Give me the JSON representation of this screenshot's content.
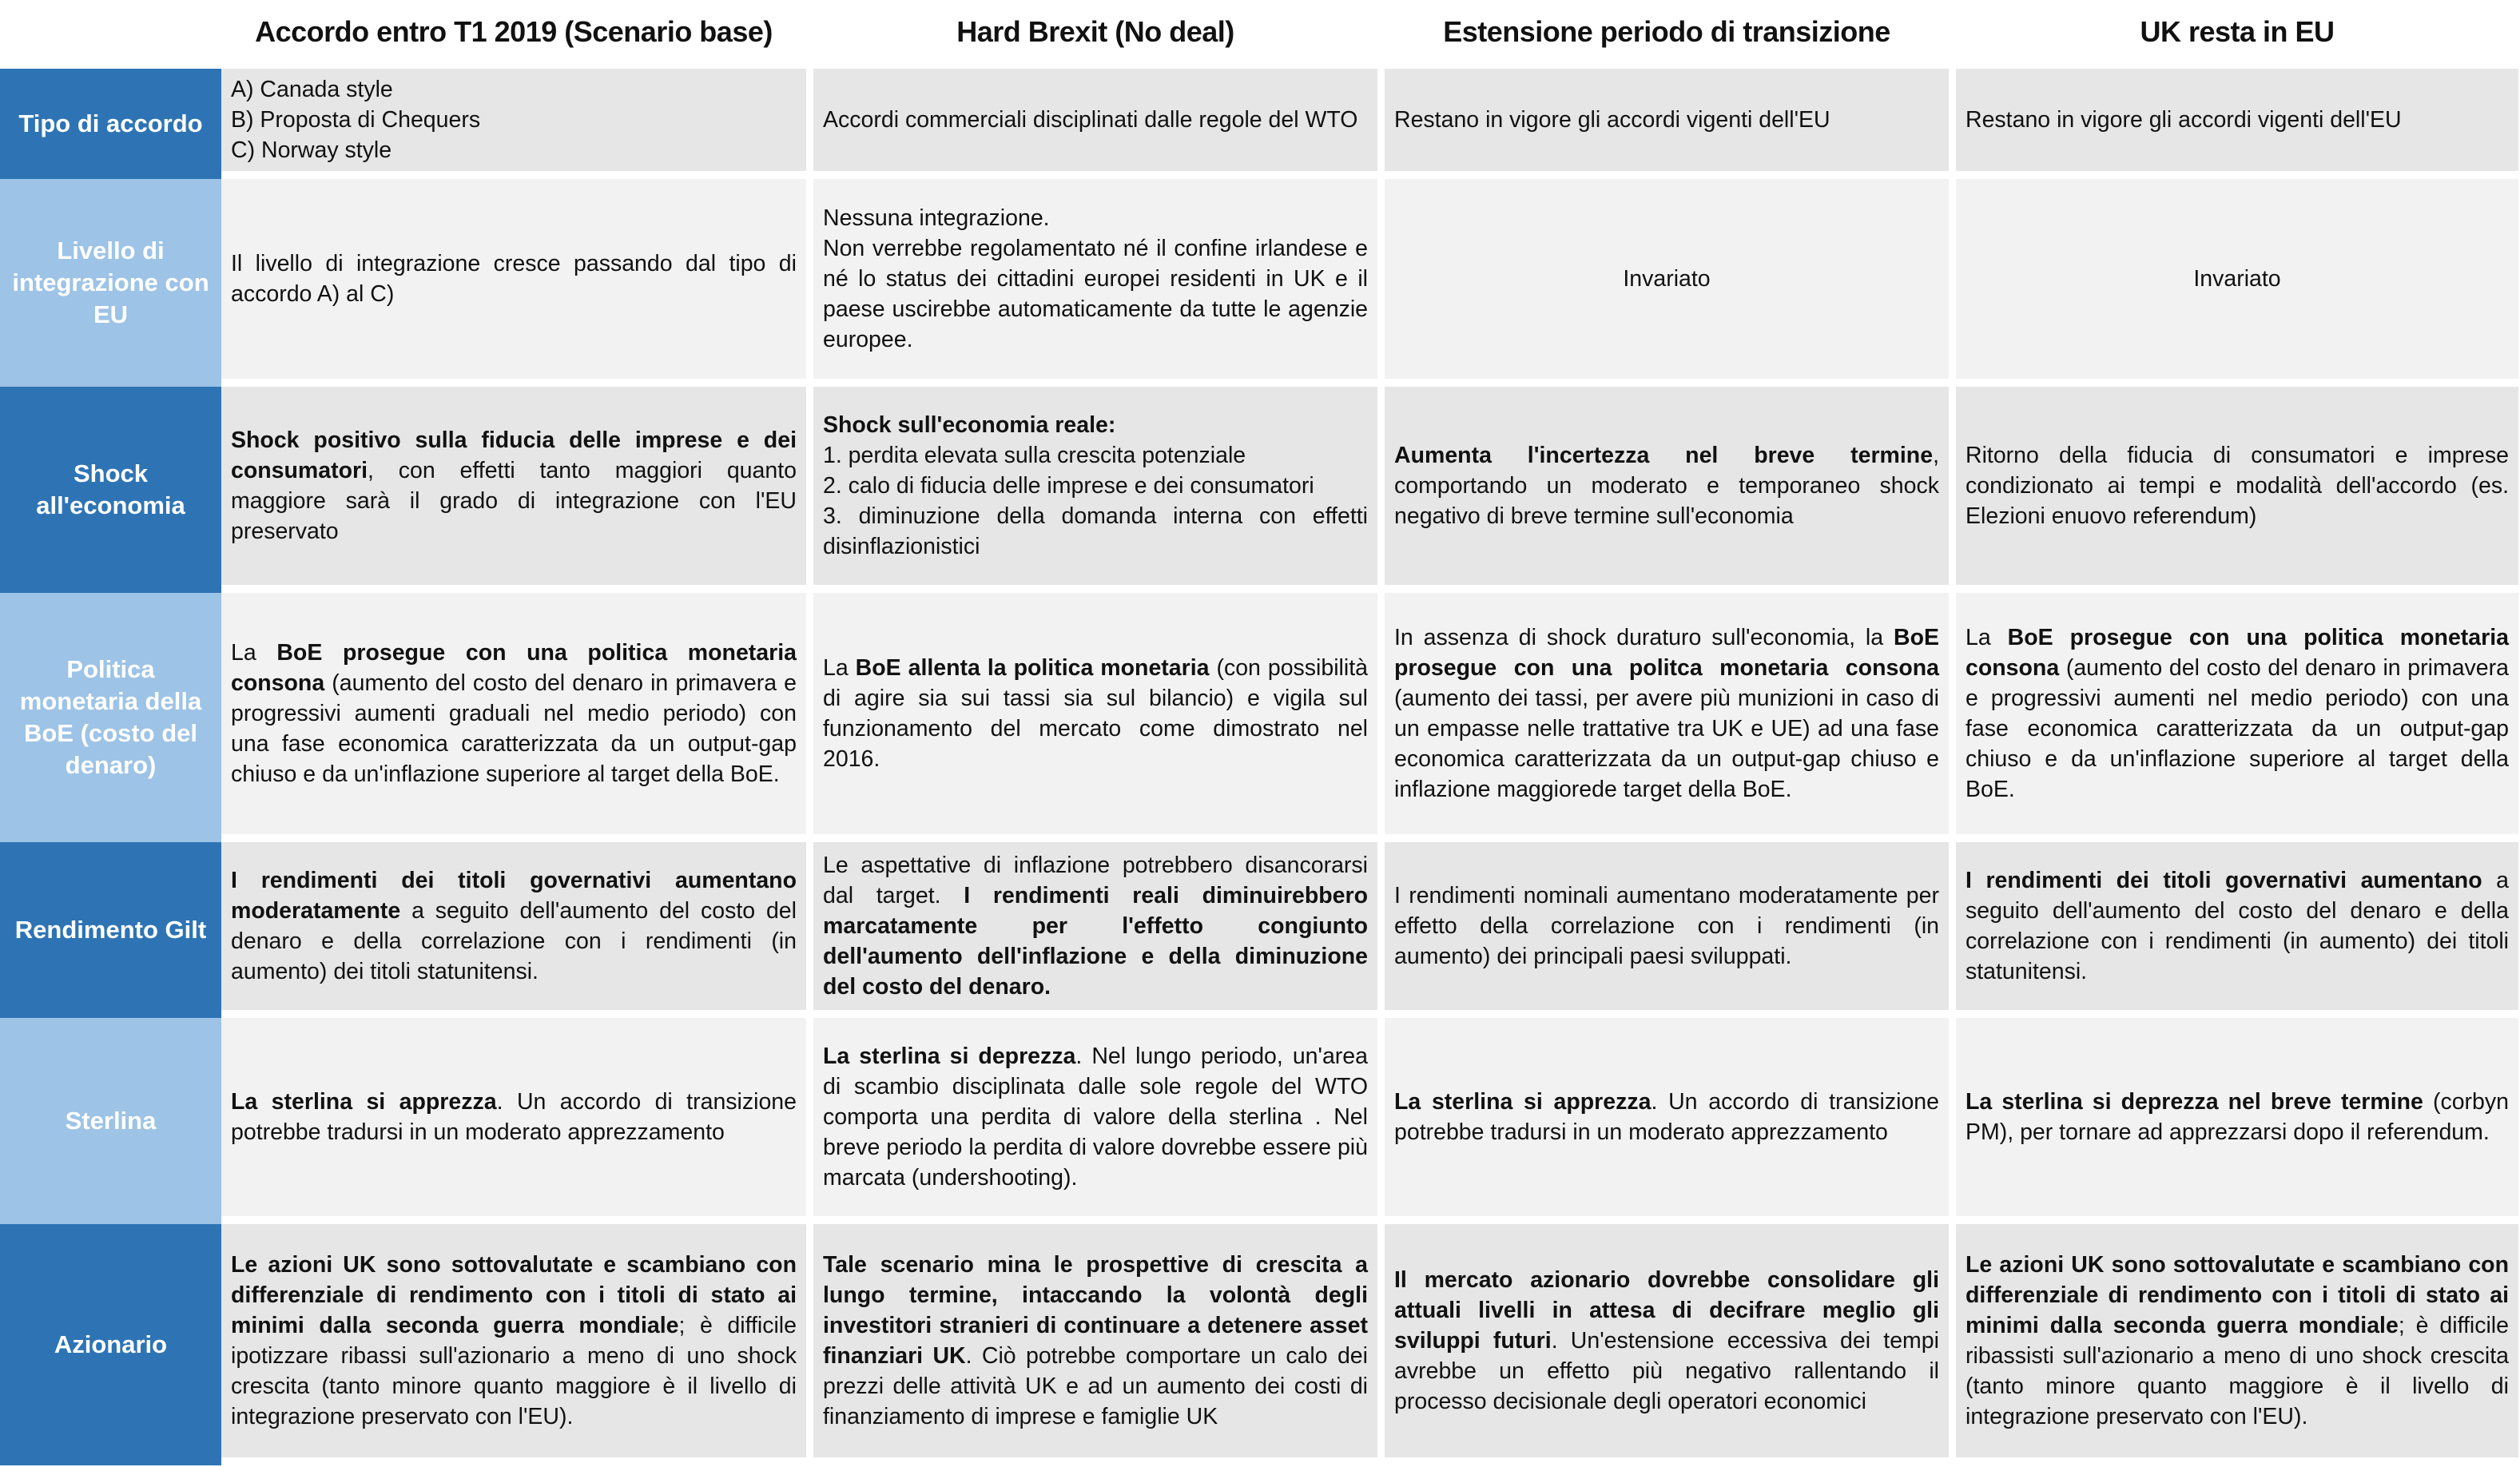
{
  "colors": {
    "label_dark": "#2E74B5",
    "label_light": "#9DC3E6",
    "cell_dark": "#E7E6E6",
    "cell_light": "#F2F2F2"
  },
  "headers": [
    "Accordo entro T1 2019 (Scenario base)",
    "Hard Brexit (No deal)",
    "Estensione periodo di transizione",
    "UK resta in EU"
  ],
  "rows": [
    {
      "label": "Tipo di accordo",
      "cells": [
        [
          {
            "t": "A) Canada style\nB) Proposta di Chequers\nC) Norway style"
          }
        ],
        [
          {
            "t": "Accordi commerciali disciplinati dalle regole del WTO"
          }
        ],
        [
          {
            "t": "Restano in vigore gli accordi vigenti dell'EU"
          }
        ],
        [
          {
            "t": "Restano in vigore gli accordi vigenti dell'EU"
          }
        ]
      ]
    },
    {
      "label": "Livello di integrazione con EU",
      "cells": [
        [
          {
            "t": "Il livello di integrazione cresce passando dal tipo di accordo A) al C)"
          }
        ],
        [
          {
            "t": "Nessuna integrazione.\nNon verrebbe regolamentato né il confine irlandese e né lo status dei cittadini europei residenti in UK e il paese uscirebbe automaticamente da tutte le agenzie europee."
          }
        ],
        [
          {
            "t": "Invariato"
          }
        ],
        [
          {
            "t": "Invariato"
          }
        ]
      ]
    },
    {
      "label": "Shock all'economia",
      "cells": [
        [
          {
            "b": true,
            "t": "Shock positivo sulla fiducia delle imprese e dei consumatori"
          },
          {
            "t": ", con effetti tanto maggiori quanto maggiore sarà il grado di integrazione con l'EU preservato"
          }
        ],
        [
          {
            "b": true,
            "t": "Shock sull'economia reale:"
          },
          {
            "t": "\n1. perdita elevata sulla crescita potenziale\n2. calo di fiducia delle imprese e dei consumatori\n3. diminuzione della domanda interna con effetti disinflazionistici"
          }
        ],
        [
          {
            "b": true,
            "t": "Aumenta l'incertezza nel breve termine"
          },
          {
            "t": ", comportando un moderato e temporaneo shock negativo di breve termine sull'economia"
          }
        ],
        [
          {
            "t": "Ritorno della fiducia di consumatori e imprese condizionato ai tempi e modalità dell'accordo (es. Elezioni enuovo referendum)"
          }
        ]
      ]
    },
    {
      "label": "Politica monetaria della BoE (costo del denaro)",
      "cells": [
        [
          {
            "t": "La "
          },
          {
            "b": true,
            "t": "BoE prosegue con una politica monetaria consona"
          },
          {
            "t": " (aumento del costo del denaro in primavera e progressivi aumenti graduali nel medio periodo) con una fase economica caratterizzata da un output-gap chiuso e da un'inflazione superiore al target della BoE."
          }
        ],
        [
          {
            "t": "La "
          },
          {
            "b": true,
            "t": "BoE allenta la politica monetaria"
          },
          {
            "t": " (con possibilità di agire sia sui tassi sia sul bilancio) e vigila sul funzionamento del mercato come dimostrato nel 2016."
          }
        ],
        [
          {
            "t": "In assenza di shock duraturo sull'economia, la "
          },
          {
            "b": true,
            "t": "BoE prosegue con una politca monetaria consona"
          },
          {
            "t": " (aumento dei tassi, per avere più munizioni in caso di un empasse nelle trattative tra UK e UE) ad una fase economica caratterizzata da un output-gap chiuso e inflazione maggiorede target della BoE."
          }
        ],
        [
          {
            "t": "La "
          },
          {
            "b": true,
            "t": "BoE prosegue con una politica monetaria consona"
          },
          {
            "t": " (aumento del costo del denaro in primavera e progressivi aumenti nel medio periodo) con una fase economica caratterizzata da un output-gap chiuso e da un'inflazione superiore al target della BoE."
          }
        ]
      ]
    },
    {
      "label": "Rendimento Gilt",
      "cells": [
        [
          {
            "b": true,
            "t": "I rendimenti dei titoli governativi aumentano moderatamente"
          },
          {
            "t": " a seguito dell'aumento del costo del denaro e della correlazione con i rendimenti (in aumento) dei titoli statunitensi."
          }
        ],
        [
          {
            "t": "Le aspettative di inflazione potrebbero disancorarsi dal target. "
          },
          {
            "b": true,
            "t": "I rendimenti reali diminuirebbero marcatamente per l'effetto congiunto dell'aumento dell'inflazione e della diminuzione del costo del denaro."
          }
        ],
        [
          {
            "t": "I rendimenti nominali aumentano moderatamente per effetto della correlazione con i rendimenti (in aumento) dei principali paesi sviluppati."
          }
        ],
        [
          {
            "b": true,
            "t": "I rendimenti dei titoli governativi aumentano"
          },
          {
            "t": " a seguito dell'aumento del costo del denaro e della correlazione con i rendimenti (in aumento) dei titoli statunitensi."
          }
        ]
      ]
    },
    {
      "label": "Sterlina",
      "cells": [
        [
          {
            "b": true,
            "t": "La sterlina si apprezza"
          },
          {
            "t": ". Un accordo di transizione potrebbe tradursi in un moderato apprezzamento"
          }
        ],
        [
          {
            "b": true,
            "t": "La sterlina si deprezza"
          },
          {
            "t": ". Nel lungo periodo, un'area di scambio disciplinata dalle sole regole del WTO comporta una perdita di valore della sterlina . Nel breve periodo la perdita di valore dovrebbe essere più marcata (undershooting)."
          }
        ],
        [
          {
            "b": true,
            "t": "La sterlina si apprezza"
          },
          {
            "t": ". Un accordo di transizione potrebbe tradursi in un moderato apprezzamento"
          }
        ],
        [
          {
            "b": true,
            "t": "La sterlina si deprezza nel breve termine"
          },
          {
            "t": " (corbyn PM), per tornare ad apprezzarsi dopo il referendum."
          }
        ]
      ]
    },
    {
      "label": "Azionario",
      "cells": [
        [
          {
            "b": true,
            "t": "Le azioni UK sono sottovalutate e scambiano con differenziale di rendimento con i titoli di stato ai minimi dalla seconda guerra mondiale"
          },
          {
            "t": "; è difficile ipotizzare ribassi sull'azionario a meno di uno shock crescita (tanto minore quanto maggiore è il livello di integrazione preservato con l'EU)."
          }
        ],
        [
          {
            "b": true,
            "t": "Tale scenario mina le prospettive di crescita a lungo termine, intaccando la volontà degli investitori stranieri di continuare a detenere asset finanziari UK"
          },
          {
            "t": ". Ciò potrebbe comportare un calo dei prezzi delle attività UK e ad un aumento dei costi di finanziamento di imprese e famiglie UK"
          }
        ],
        [
          {
            "b": true,
            "t": "Il mercato azionario dovrebbe consolidare gli attuali livelli in attesa di decifrare meglio gli sviluppi futuri"
          },
          {
            "t": ". Un'estensione eccessiva dei tempi avrebbe un effetto più negativo rallentando il processo decisionale degli operatori economici"
          }
        ],
        [
          {
            "b": true,
            "t": "Le azioni UK sono sottovalutate e scambiano con differenziale di rendimento con i titoli di stato ai minimi dalla seconda guerra mondiale"
          },
          {
            "t": "; è difficile ribassisti sull'azionario a meno di uno shock crescita (tanto minore quanto maggiore è il livello di integrazione preservato con l'EU)."
          }
        ]
      ]
    }
  ]
}
